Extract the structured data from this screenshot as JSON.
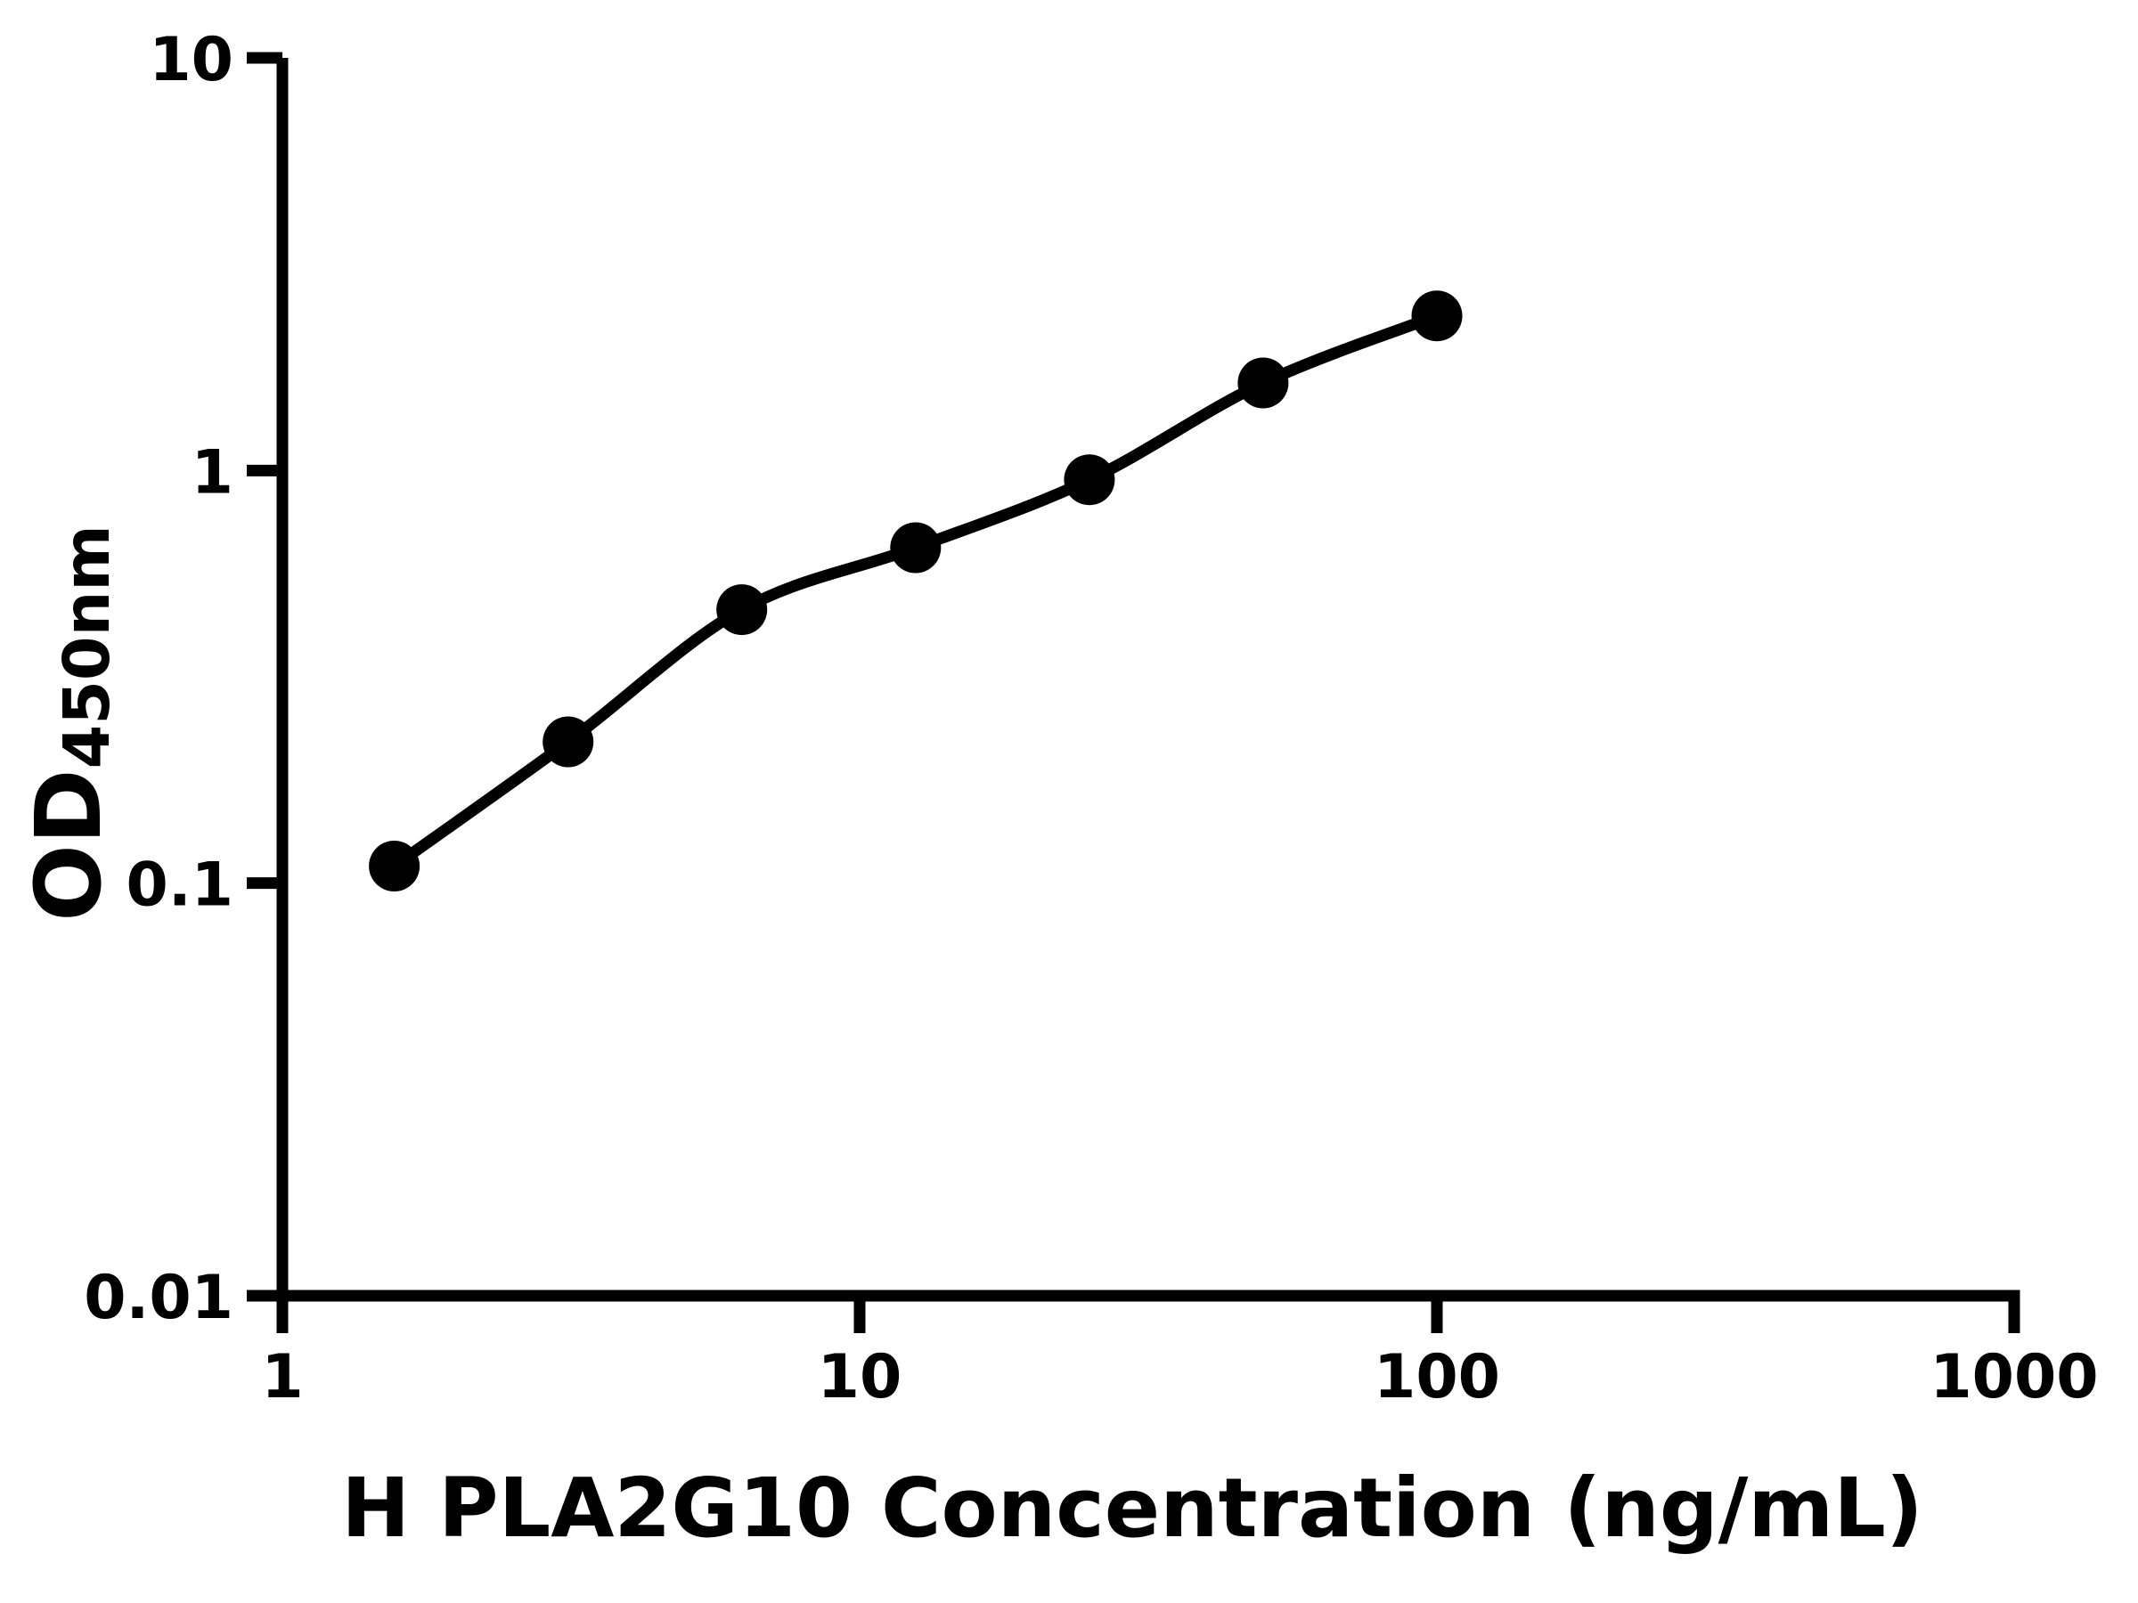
{
  "figure": {
    "background_color": "#ffffff",
    "foreground_color": "#000000"
  },
  "chart_data": {
    "type": "scatter",
    "title": "",
    "xlabel": "H PLA2G10 Concentration (ng/mL)",
    "ylabel": "OD",
    "ylabel_subscript": "450nm",
    "x_scale": "log",
    "y_scale": "log",
    "xlim": [
      1,
      1000
    ],
    "ylim": [
      0.01,
      10
    ],
    "grid": false,
    "legend": false,
    "marker": "circle",
    "color": "#000000",
    "x_ticks": [
      {
        "value": 1,
        "label": "1"
      },
      {
        "value": 10,
        "label": "10"
      },
      {
        "value": 100,
        "label": "100"
      },
      {
        "value": 1000,
        "label": "1000"
      }
    ],
    "y_ticks": [
      {
        "value": 0.01,
        "label": "0.01"
      },
      {
        "value": 0.1,
        "label": "0.1"
      },
      {
        "value": 1,
        "label": "1"
      },
      {
        "value": 10,
        "label": "10"
      }
    ],
    "points": [
      {
        "x": 1.5625,
        "y": 0.11
      },
      {
        "x": 3.125,
        "y": 0.22
      },
      {
        "x": 6.25,
        "y": 0.46
      },
      {
        "x": 12.5,
        "y": 0.65
      },
      {
        "x": 25,
        "y": 0.95
      },
      {
        "x": 50,
        "y": 1.63
      },
      {
        "x": 100,
        "y": 2.37
      }
    ]
  }
}
